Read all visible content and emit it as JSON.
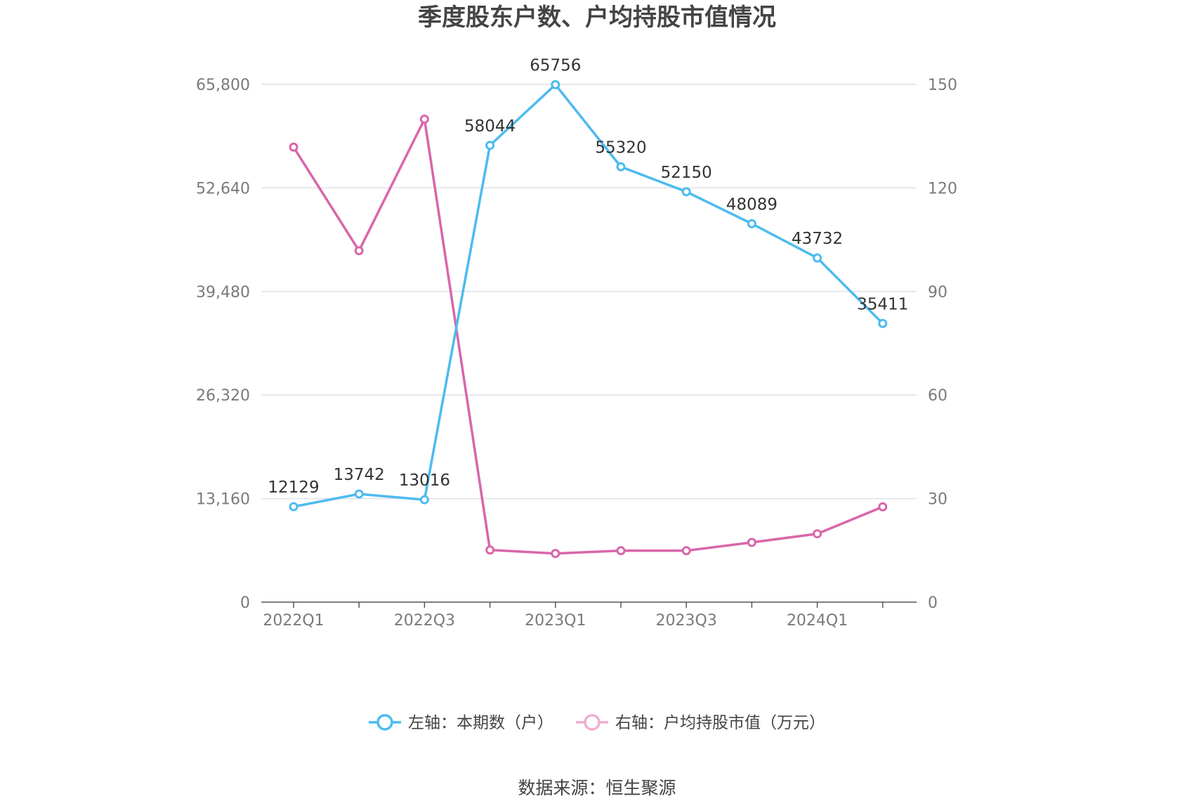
{
  "chart_data": {
    "type": "line",
    "title": "季度股东户数、户均持股市值情况",
    "categories": [
      "2022Q1",
      "2022Q2",
      "2022Q3",
      "2022Q4",
      "2023Q1",
      "2023Q2",
      "2023Q3",
      "2023Q4",
      "2024Q1",
      "2024Q2"
    ],
    "x_tick_labels": [
      "2022Q1",
      "",
      "2022Q3",
      "",
      "2023Q1",
      "",
      "2023Q3",
      "",
      "2024Q1",
      ""
    ],
    "left_axis": {
      "ylim": [
        0,
        65800
      ],
      "ticks": [
        0,
        13160,
        26320,
        39480,
        52640,
        65800
      ],
      "tick_labels": [
        "0",
        "13,160",
        "26,320",
        "39,480",
        "52,640",
        "65,800"
      ]
    },
    "right_axis": {
      "ylim": [
        0,
        150
      ],
      "ticks": [
        0,
        30,
        60,
        90,
        120,
        150
      ],
      "tick_labels": [
        "0",
        "30",
        "60",
        "90",
        "120",
        "150"
      ]
    },
    "series": [
      {
        "name": "左轴：本期数（户）",
        "axis": "left",
        "color": "#4dbbef",
        "values": [
          12129,
          13742,
          13016,
          58044,
          65756,
          55320,
          52150,
          48089,
          43732,
          35411
        ],
        "labels": [
          "12129",
          "13742",
          "13016",
          "58044",
          "65756",
          "55320",
          "52150",
          "48089",
          "43732",
          "35411"
        ]
      },
      {
        "name": "右轴：户均持股市值（万元）",
        "axis": "right",
        "color": "#d966a9",
        "legend_color": "#efaed3",
        "values": [
          131.8,
          101.8,
          139.9,
          15.1,
          14.1,
          14.9,
          14.9,
          17.3,
          19.8,
          27.6
        ],
        "labels": []
      }
    ],
    "grid": true,
    "legend_position": "bottom",
    "source": "数据来源：恒生聚源"
  }
}
